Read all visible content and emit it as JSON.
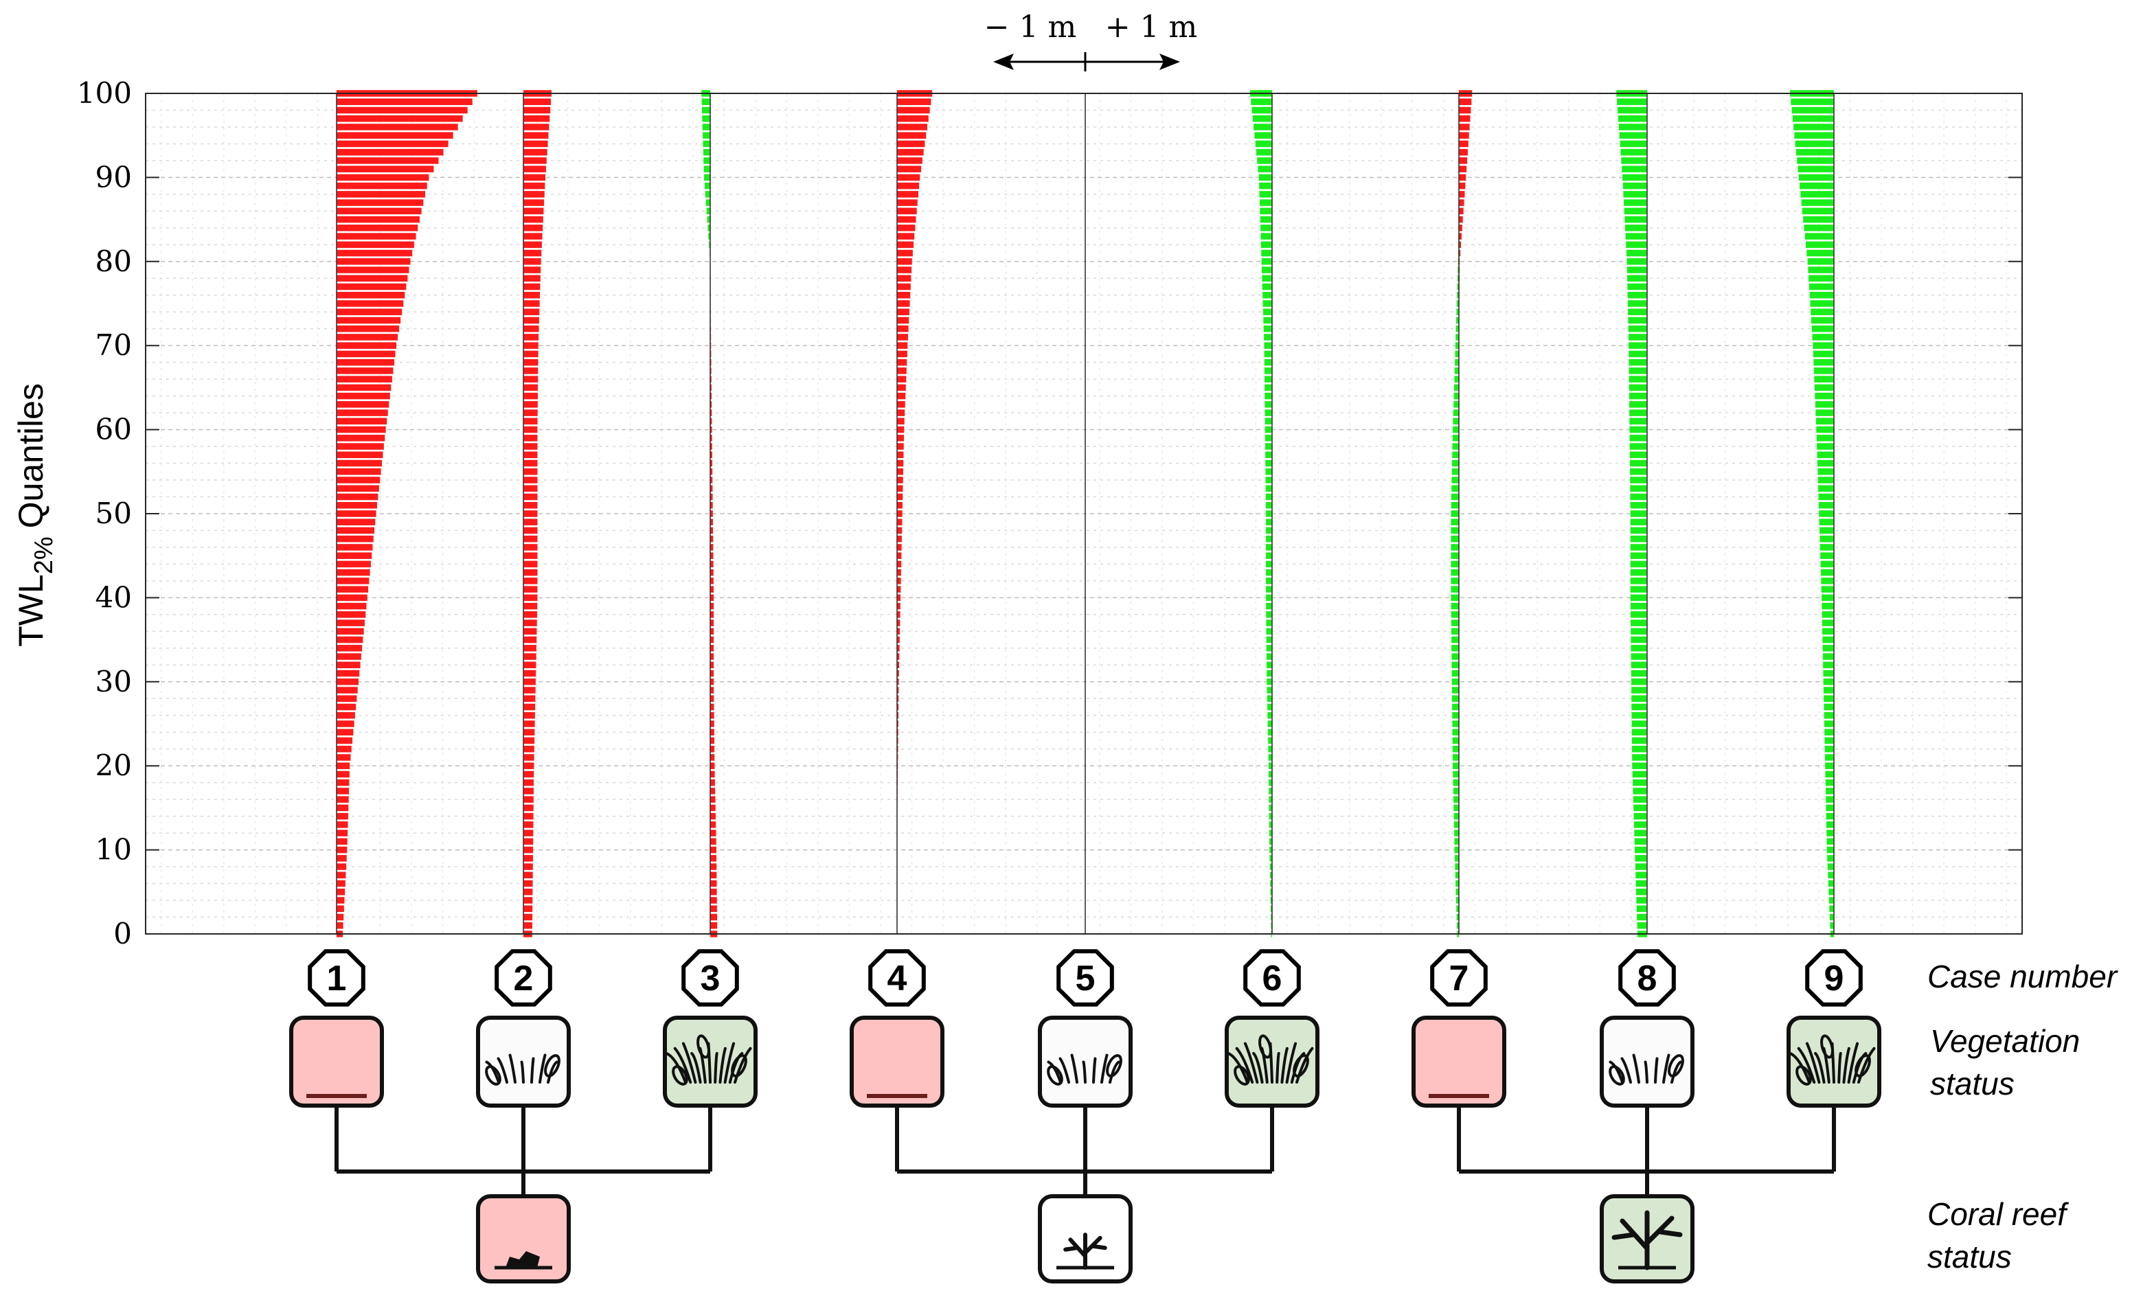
{
  "chart_data": {
    "type": "bar",
    "orientation": "horizontal",
    "ylabel_main": "TWL",
    "ylabel_sub": "2%",
    "ylabel_tail": "Quantiles",
    "ylim": [
      0,
      100
    ],
    "yticks": [
      "0",
      "10",
      "20",
      "30",
      "40",
      "50",
      "60",
      "70",
      "80",
      "90",
      "100"
    ],
    "grid": true,
    "scale_bar": {
      "left_label": "− 1 m",
      "right_label": "+ 1 m"
    },
    "colors": {
      "negative": "#ff1a1a",
      "positive": "#1aee1a"
    },
    "difference_unit": "m",
    "quantile_axis": [
      0,
      10,
      20,
      30,
      40,
      50,
      60,
      70,
      80,
      90,
      100
    ],
    "series": [
      {
        "case": "1",
        "sign": "negative",
        "values": [
          0.07,
          0.12,
          0.15,
          0.25,
          0.35,
          0.45,
          0.56,
          0.68,
          0.84,
          1.05,
          1.6
        ]
      },
      {
        "case": "2",
        "sign": "negative",
        "values": [
          0.1,
          0.11,
          0.12,
          0.14,
          0.16,
          0.16,
          0.16,
          0.17,
          0.2,
          0.25,
          0.32
        ]
      },
      {
        "case": "3",
        "sign": "negative",
        "values": [
          0.08,
          0.07,
          0.05,
          0.04,
          0.04,
          0.03,
          0.02,
          0.01,
          0.0,
          0.0,
          0.0
        ]
      },
      {
        "case": "3",
        "sign": "positive",
        "values": [
          0.0,
          0.0,
          0.0,
          0.0,
          0.0,
          0.0,
          0.0,
          0.0,
          0.0,
          0.07,
          0.1
        ]
      },
      {
        "case": "4",
        "sign": "negative",
        "values": [
          0.0,
          0.0,
          0.01,
          0.02,
          0.04,
          0.06,
          0.08,
          0.12,
          0.17,
          0.26,
          0.4
        ]
      },
      {
        "case": "5",
        "sign": "negative",
        "values": [
          0.0,
          0.0,
          0.0,
          0.0,
          0.0,
          0.0,
          0.0,
          0.0,
          0.0,
          0.0,
          0.0
        ]
      },
      {
        "case": "6",
        "sign": "positive",
        "values": [
          0.01,
          0.03,
          0.04,
          0.06,
          0.07,
          0.07,
          0.08,
          0.09,
          0.12,
          0.15,
          0.25
        ]
      },
      {
        "case": "7",
        "sign": "positive",
        "values": [
          0.02,
          0.05,
          0.07,
          0.08,
          0.09,
          0.09,
          0.07,
          0.04,
          0.01,
          0.0,
          0.0
        ]
      },
      {
        "case": "7",
        "sign": "negative",
        "values": [
          0.0,
          0.0,
          0.0,
          0.0,
          0.0,
          0.0,
          0.0,
          0.0,
          0.01,
          0.08,
          0.15
        ]
      },
      {
        "case": "8",
        "sign": "positive",
        "values": [
          0.11,
          0.14,
          0.17,
          0.18,
          0.19,
          0.19,
          0.2,
          0.21,
          0.23,
          0.28,
          0.35
        ]
      },
      {
        "case": "9",
        "sign": "positive",
        "values": [
          0.04,
          0.08,
          0.1,
          0.12,
          0.14,
          0.17,
          0.2,
          0.24,
          0.3,
          0.4,
          0.5
        ]
      }
    ],
    "case_centers": [
      "1",
      "2",
      "3",
      "4",
      "5",
      "6",
      "7",
      "8",
      "9"
    ]
  },
  "annotations": {
    "case_number": "Case number",
    "vegetation_status": [
      "Vegetation",
      "status"
    ],
    "coral_reef_status": [
      "Coral reef",
      "status"
    ],
    "case_numbers": [
      "1",
      "2",
      "3",
      "4",
      "5",
      "6",
      "7",
      "8",
      "9"
    ],
    "vegetation": [
      "none",
      "medium",
      "high",
      "none",
      "medium",
      "high",
      "none",
      "medium",
      "high"
    ],
    "coral_groups": [
      {
        "cases": [
          "1",
          "2",
          "3"
        ],
        "status": "degraded",
        "icon": "degraded-coral-icon"
      },
      {
        "cases": [
          "4",
          "5",
          "6"
        ],
        "status": "medium",
        "icon": "medium-coral-icon"
      },
      {
        "cases": [
          "7",
          "8",
          "9"
        ],
        "status": "healthy",
        "icon": "healthy-coral-icon"
      }
    ],
    "box_fill": {
      "none": "#ffc2c2",
      "medium": "#fbfbfb",
      "high": "#d8e8d0"
    },
    "coral_fill": {
      "degraded": "#ffc2c2",
      "medium": "#ffffff",
      "healthy": "#d8e8d0"
    }
  }
}
